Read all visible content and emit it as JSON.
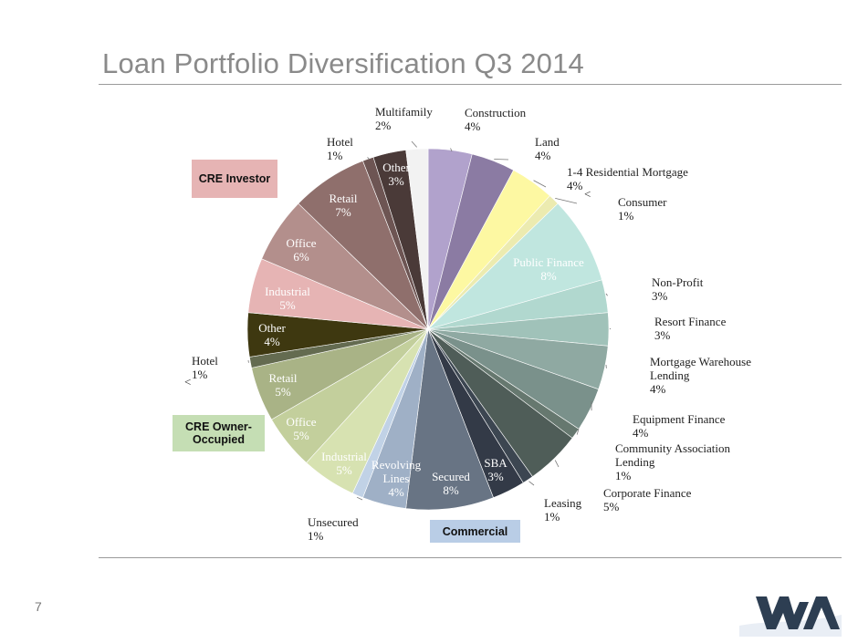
{
  "title": "Loan Portfolio Diversification Q3 2014",
  "page_number": "7",
  "groups": {
    "cre_investor": "CRE Investor",
    "cre_owner_occupied": "CRE Owner-Occupied",
    "commercial": "Commercial"
  },
  "chart_data": {
    "type": "pie",
    "title": "Loan Portfolio Diversification Q3 2014",
    "slices": [
      {
        "label": "Construction",
        "value": 4,
        "pct_label": "4%",
        "color": "#b1a2cc"
      },
      {
        "label": "Land",
        "value": 4,
        "pct_label": "4%",
        "color": "#8b7ba3"
      },
      {
        "label": "1-4 Residential Mortgage",
        "value": 4,
        "pct_label": "4%",
        "color": "#fdf8a2"
      },
      {
        "label": "Consumer",
        "value": 1,
        "pct_label": "1%",
        "color": "#ecebb0"
      },
      {
        "label": "Public Finance",
        "value": 8,
        "pct_label": "8%",
        "color": "#c0e6df"
      },
      {
        "label": "Non-Profit",
        "value": 3,
        "pct_label": "3%",
        "color": "#b1d8cf"
      },
      {
        "label": "Resort Finance",
        "value": 3,
        "pct_label": "3%",
        "color": "#a0c2b9"
      },
      {
        "label": "Mortgage Warehouse Lending",
        "value": 4,
        "pct_label": "4%",
        "color": "#8fa9a2"
      },
      {
        "label": "Equipment Finance",
        "value": 4,
        "pct_label": "4%",
        "color": "#7a918b"
      },
      {
        "label": "Community Association Lending",
        "value": 1,
        "pct_label": "1%",
        "color": "#66786f"
      },
      {
        "label": "Corporate Finance",
        "value": 5,
        "pct_label": "5%",
        "color": "#4f5d58"
      },
      {
        "label": "Leasing",
        "value": 1,
        "pct_label": "1%",
        "color": "#3c4651"
      },
      {
        "label": "SBA",
        "value": 3,
        "pct_label": "3%",
        "color": "#333a47"
      },
      {
        "label": "Secured",
        "value": 8,
        "pct_label": "8%",
        "color": "#687484"
      },
      {
        "label": "Revolving Lines",
        "value": 4,
        "pct_label": "4%",
        "color": "#9fb0c6"
      },
      {
        "label": "Unsecured",
        "value": 1,
        "pct_label": "1%",
        "color": "#c1d2e6"
      },
      {
        "label": "Industrial",
        "value": 5,
        "pct_label": "5%",
        "color": "#d7e2b1"
      },
      {
        "label": "Office",
        "value": 5,
        "pct_label": "5%",
        "color": "#c3cf9c"
      },
      {
        "label": "Retail",
        "value": 5,
        "pct_label": "5%",
        "color": "#a9b386"
      },
      {
        "label": "Hotel",
        "value": 1,
        "pct_label": "1%",
        "color": "#646b50"
      },
      {
        "label": "Other",
        "value": 4,
        "pct_label": "4%",
        "color": "#3e3810"
      },
      {
        "label": "Industrial",
        "value": 5,
        "pct_label": "5%",
        "color": "#e6b4b4"
      },
      {
        "label": "Office",
        "value": 6,
        "pct_label": "6%",
        "color": "#b38f8c"
      },
      {
        "label": "Retail",
        "value": 7,
        "pct_label": "7%",
        "color": "#8f6f6c"
      },
      {
        "label": "Hotel",
        "value": 1,
        "pct_label": "1%",
        "color": "#6d5553"
      },
      {
        "label": "Other",
        "value": 3,
        "pct_label": "3%",
        "color": "#4a3a38"
      },
      {
        "label": "Multifamily",
        "value": 2,
        "pct_label": "2%",
        "color": "#f2f2f2"
      }
    ],
    "legend": "none"
  }
}
